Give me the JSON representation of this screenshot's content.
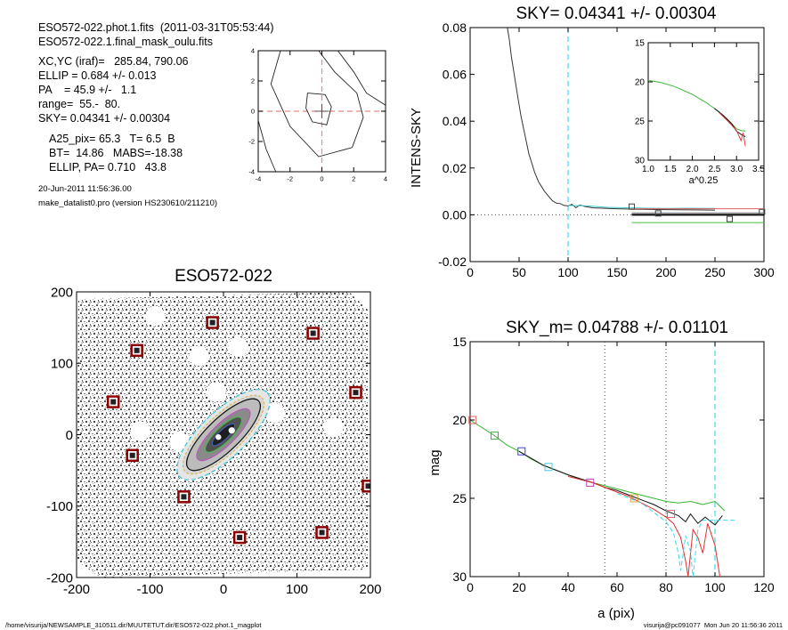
{
  "header": {
    "file_line": "ESO572-022.phot.1.fits  (2011-03-31T05:53:44)",
    "mask_line": "ESO572-022.1.final_mask_oulu.fits",
    "center_line": "XC,YC (iraf)=   285.84, 790.06",
    "ellip_line": "ELLIP = 0.684 +/- 0.013",
    "pa_line": "PA    = 45.9 +/-   1.1",
    "range_line": "range=  55.-  80.",
    "sky_line": "SKY= 0.04341 +/- 0.00304",
    "a25_line": "A25_pix= 65.3   T= 6.5  B",
    "bt_line": "BT=  14.86   MABS=-18.38",
    "ellip_pa_line": "ELLIP, PA= 0.710   43.8",
    "date_line": "20-Jun-2011 11:56:36.00",
    "program_line": "make_datalist0.pro (version HS230610/211210)"
  },
  "footer": {
    "left": "/home/visurija/NEWSAMPLE_310511.dir/MUUTETUT.dir/ESO572-022.phot.1_magplot",
    "right": "visurija@pc091077  Mon Jun 20 11:56:36 2011"
  },
  "chart_data": [
    {
      "id": "contour",
      "type": "contour",
      "title": "",
      "xlim": [
        -4,
        4
      ],
      "ylim": [
        -4,
        4
      ],
      "xticks": [
        "-4",
        "-2",
        "0",
        "2",
        "4"
      ],
      "yticks": [
        "-4",
        "-2",
        "0",
        "2",
        "4"
      ],
      "crosshair": [
        0,
        0
      ],
      "contours": [
        [
          [
            -0.9,
            1.2
          ],
          [
            0.2,
            1.1
          ],
          [
            0.6,
            0.3
          ],
          [
            0.3,
            -0.9
          ],
          [
            -0.6,
            -0.7
          ],
          [
            -1.0,
            0.2
          ],
          [
            -0.9,
            1.2
          ]
        ],
        [
          [
            -2.6,
            4.0
          ],
          [
            -3.2,
            1.8
          ],
          [
            -2.0,
            -1.0
          ],
          [
            -0.2,
            -3.0
          ],
          [
            1.9,
            -2.4
          ],
          [
            2.6,
            -0.4
          ],
          [
            2.2,
            1.2
          ],
          [
            0.8,
            2.6
          ],
          [
            -0.2,
            4.0
          ]
        ],
        [
          [
            -4.0,
            -0.6
          ],
          [
            -3.5,
            -2.5
          ],
          [
            -2.9,
            -4.0
          ]
        ],
        [
          [
            1.0,
            4.0
          ],
          [
            2.0,
            2.6
          ],
          [
            2.8,
            1.2
          ],
          [
            4.0,
            0.4
          ]
        ]
      ]
    },
    {
      "id": "sky",
      "type": "line",
      "title": "SKY= 0.04341 +/- 0.00304",
      "xlabel": "",
      "ylabel": "INTENS-SKY",
      "xlim": [
        0,
        300
      ],
      "ylim": [
        -0.02,
        0.08
      ],
      "xticks": [
        "0",
        "50",
        "100",
        "150",
        "200",
        "250",
        "300"
      ],
      "yticks": [
        "-0.02",
        "0.00",
        "0.02",
        "0.04",
        "0.06",
        "0.08"
      ],
      "vline_x": 100,
      "series": [
        {
          "color": "#333333",
          "points": [
            [
              38,
              0.08
            ],
            [
              40,
              0.075
            ],
            [
              42,
              0.068
            ],
            [
              45,
              0.06
            ],
            [
              48,
              0.052
            ],
            [
              50,
              0.047
            ],
            [
              52,
              0.042
            ],
            [
              55,
              0.036
            ],
            [
              58,
              0.03
            ],
            [
              60,
              0.026
            ],
            [
              63,
              0.022
            ],
            [
              66,
              0.018
            ],
            [
              70,
              0.014
            ],
            [
              73,
              0.012
            ],
            [
              76,
              0.01
            ],
            [
              80,
              0.008
            ],
            [
              84,
              0.006
            ],
            [
              88,
              0.005
            ],
            [
              92,
              0.0048
            ],
            [
              96,
              0.004
            ],
            [
              100,
              0.0038
            ],
            [
              104,
              0.0045
            ],
            [
              108,
              0.003
            ],
            [
              112,
              0.0042
            ],
            [
              118,
              0.0035
            ],
            [
              125,
              0.003
            ],
            [
              135,
              0.0028
            ],
            [
              150,
              0.0026
            ],
            [
              170,
              0.0024
            ],
            [
              200,
              0.0022
            ],
            [
              230,
              0.0021
            ],
            [
              250,
              0.002
            ]
          ]
        },
        {
          "color": "#3cc8c8",
          "points": [
            [
              100,
              0.004
            ],
            [
              120,
              0.0038
            ],
            [
              140,
              0.0032
            ],
            [
              160,
              0.003
            ],
            [
              180,
              0.0028
            ],
            [
              200,
              0.0027
            ],
            [
              220,
              0.0028
            ],
            [
              250,
              0.0027
            ]
          ]
        },
        {
          "color": "#777777",
          "points": [
            [
              165,
              0.0008
            ],
            [
              300,
              0.0008
            ]
          ]
        },
        {
          "color": "#e06060",
          "points": [
            [
              165,
              0.0026
            ],
            [
              300,
              0.0026
            ]
          ]
        },
        {
          "color": "#000000",
          "points": [
            [
              165,
              0.0
            ],
            [
              300,
              0.0
            ]
          ]
        },
        {
          "color": "#40c040",
          "points": [
            [
              165,
              -0.0033
            ],
            [
              300,
              -0.0033
            ]
          ]
        }
      ],
      "markers": [
        [
          165,
          0.0035
        ],
        [
          192,
          0.0006
        ],
        [
          265,
          -0.0018
        ],
        [
          298,
          0.0012
        ]
      ],
      "inset": {
        "xlabel": "a^0.25",
        "xlim": [
          1.0,
          3.5
        ],
        "ylim": [
          15,
          30
        ],
        "xticks": [
          "1.0",
          "1.5",
          "2.0",
          "2.5",
          "3.0",
          "3.5"
        ],
        "yticks": [
          "15",
          "20",
          "25",
          "30"
        ],
        "series": [
          {
            "color": "#3cb83c",
            "points": [
              [
                1.0,
                19.8
              ],
              [
                1.3,
                20.1
              ],
              [
                1.6,
                20.6
              ],
              [
                2.0,
                21.6
              ],
              [
                2.3,
                22.6
              ],
              [
                2.6,
                23.8
              ],
              [
                2.8,
                24.8
              ],
              [
                3.0,
                26.0
              ],
              [
                3.1,
                26.2
              ],
              [
                3.2,
                26.3
              ]
            ]
          },
          {
            "color": "#111111",
            "points": [
              [
                2.5,
                23.4
              ],
              [
                2.7,
                24.3
              ],
              [
                2.9,
                25.4
              ],
              [
                3.0,
                26.3
              ],
              [
                3.1,
                26.7
              ],
              [
                3.2,
                27.0
              ]
            ]
          },
          {
            "color": "#e04040",
            "points": [
              [
                2.6,
                23.9
              ],
              [
                2.8,
                25.0
              ],
              [
                3.0,
                26.2
              ],
              [
                3.1,
                27.5
              ],
              [
                3.15,
                26.5
              ],
              [
                3.2,
                28.2
              ]
            ]
          }
        ]
      }
    },
    {
      "id": "image",
      "type": "image",
      "title": "ESO572-022",
      "xlim": [
        -200,
        200
      ],
      "ylim": [
        -200,
        200
      ],
      "xticks": [
        "-200",
        "-100",
        "0",
        "100",
        "200"
      ],
      "yticks": [
        "-200",
        "-100",
        "0",
        "100",
        "200"
      ],
      "masked_stars": [
        [
          -15,
          157
        ],
        [
          -118,
          118
        ],
        [
          122,
          142
        ],
        [
          -150,
          46
        ],
        [
          180,
          59
        ],
        [
          -124,
          -29
        ],
        [
          -54,
          -87
        ],
        [
          197,
          -72
        ],
        [
          22,
          -144
        ],
        [
          134,
          -137
        ]
      ],
      "masked_holes": [
        [
          -93,
          166
        ],
        [
          20,
          123
        ],
        [
          -10,
          60
        ],
        [
          -113,
          5
        ],
        [
          150,
          10
        ],
        [
          -33,
          110
        ],
        [
          -60,
          -10
        ],
        [
          70,
          30
        ]
      ],
      "galaxy": {
        "center": [
          0,
          0
        ],
        "pa_deg": 45.9,
        "ellip": 0.684,
        "sma": 78
      }
    },
    {
      "id": "mag",
      "type": "line",
      "title": "SKY_m=  0.04788 +/- 0.01101",
      "xlabel": "a (pix)",
      "ylabel": "mag",
      "xlim": [
        0,
        120
      ],
      "ylim": [
        30,
        15
      ],
      "xticks": [
        "0",
        "20",
        "40",
        "60",
        "80",
        "100",
        "120"
      ],
      "yticks": [
        "15",
        "20",
        "25",
        "30"
      ],
      "vlines_dotted": [
        55,
        80
      ],
      "vline_dashed": 100,
      "series": [
        {
          "color": "#30b830",
          "points": [
            [
              0,
              20.0
            ],
            [
              5,
              20.5
            ],
            [
              10,
              21.0
            ],
            [
              15,
              21.6
            ],
            [
              20,
              22.0
            ],
            [
              25,
              22.5
            ],
            [
              30,
              22.9
            ],
            [
              35,
              23.2
            ],
            [
              40,
              23.5
            ],
            [
              45,
              23.8
            ],
            [
              50,
              24.0
            ],
            [
              55,
              24.2
            ],
            [
              60,
              24.4
            ],
            [
              65,
              24.6
            ],
            [
              70,
              24.8
            ],
            [
              75,
              25.0
            ],
            [
              80,
              25.2
            ],
            [
              85,
              25.3
            ],
            [
              90,
              25.2
            ],
            [
              95,
              25.4
            ],
            [
              100,
              25.2
            ],
            [
              104,
              25.8
            ]
          ]
        },
        {
          "color": "#111111",
          "points": [
            [
              20,
              22.0
            ],
            [
              30,
              22.9
            ],
            [
              40,
              23.5
            ],
            [
              50,
              24.0
            ],
            [
              55,
              24.3
            ],
            [
              60,
              24.5
            ],
            [
              65,
              24.8
            ],
            [
              70,
              25.1
            ],
            [
              75,
              25.4
            ],
            [
              80,
              25.8
            ],
            [
              85,
              26.1
            ],
            [
              88,
              26.5
            ],
            [
              90,
              26.0
            ],
            [
              93,
              26.6
            ],
            [
              96,
              26.2
            ],
            [
              100,
              26.7
            ],
            [
              103,
              26.1
            ]
          ]
        },
        {
          "color": "#e03030",
          "points": [
            [
              40,
              23.6
            ],
            [
              50,
              24.0
            ],
            [
              60,
              24.6
            ],
            [
              65,
              24.9
            ],
            [
              70,
              25.3
            ],
            [
              75,
              25.7
            ],
            [
              80,
              26.2
            ],
            [
              83,
              26.6
            ],
            [
              86,
              27.5
            ],
            [
              88,
              29.0
            ],
            [
              89,
              30.0
            ],
            [
              91,
              27.0
            ],
            [
              93,
              27.5
            ],
            [
              95,
              28.5
            ],
            [
              97,
              26.6
            ],
            [
              100,
              28.0
            ],
            [
              102,
              30.0
            ]
          ]
        },
        {
          "color": "#40d8e8",
          "dashed": true,
          "points": [
            [
              60,
              24.7
            ],
            [
              70,
              25.3
            ],
            [
              80,
              26.5
            ],
            [
              83,
              27.2
            ],
            [
              85,
              28.5
            ],
            [
              86,
              29.6
            ],
            [
              88,
              27.4
            ],
            [
              90,
              28.4
            ],
            [
              91,
              30.0
            ],
            [
              93,
              27.0
            ],
            [
              95,
              26.4
            ],
            [
              108,
              26.4
            ]
          ]
        }
      ],
      "markers": [
        {
          "x": 1,
          "y": 20.0,
          "color": "#e06060"
        },
        {
          "x": 10,
          "y": 21.0,
          "color": "#40b040"
        },
        {
          "x": 21,
          "y": 22.0,
          "color": "#4040d0"
        },
        {
          "x": 32,
          "y": 23.0,
          "color": "#40c8d8"
        },
        {
          "x": 49,
          "y": 24.0,
          "color": "#c040c0"
        },
        {
          "x": 67,
          "y": 25.0,
          "color": "#e0a040"
        },
        {
          "x": 82,
          "y": 26.0,
          "color": "#e06060"
        }
      ]
    }
  ]
}
